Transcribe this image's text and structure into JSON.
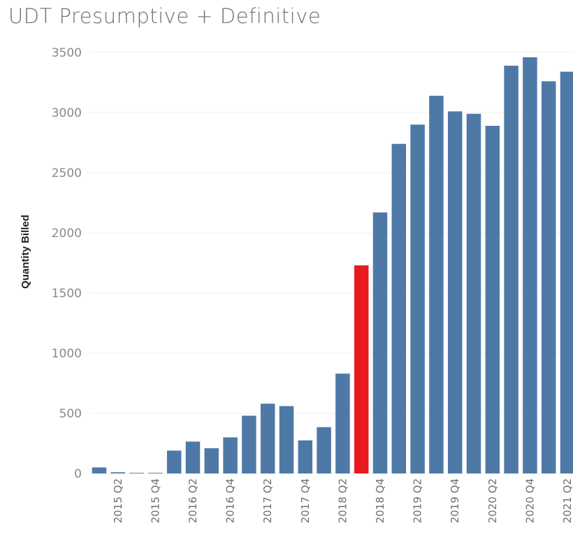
{
  "chart_data": {
    "type": "bar",
    "title": "UDT Presumptive + Definitive",
    "xlabel": "",
    "ylabel": "Quantity Billed",
    "ylim": [
      0,
      3500
    ],
    "yticks": [
      0,
      500,
      1000,
      1500,
      2000,
      2500,
      3000,
      3500
    ],
    "grid": true,
    "categories": [
      "2015 Q1",
      "2015 Q2",
      "2015 Q3",
      "2015 Q4",
      "2016 Q1",
      "2016 Q2",
      "2016 Q3",
      "2016 Q4",
      "2017 Q1",
      "2017 Q2",
      "2017 Q3",
      "2017 Q4",
      "2018 Q1",
      "2018 Q2",
      "2018 Q3",
      "2018 Q4",
      "2019 Q1",
      "2019 Q2",
      "2019 Q3",
      "2019 Q4",
      "2020 Q1",
      "2020 Q2",
      "2020 Q3",
      "2020 Q4",
      "2021 Q1",
      "2021 Q2"
    ],
    "tick_labels": [
      "",
      "2015 Q2",
      "",
      "2015 Q4",
      "",
      "2016 Q2",
      "",
      "2016 Q4",
      "",
      "2017 Q2",
      "",
      "2017 Q4",
      "",
      "2018 Q2",
      "",
      "2018 Q4",
      "",
      "2019 Q2",
      "",
      "2019 Q4",
      "",
      "2020 Q2",
      "",
      "2020 Q4",
      "",
      "2021 Q2"
    ],
    "values": [
      50,
      10,
      5,
      5,
      190,
      265,
      210,
      300,
      480,
      580,
      560,
      275,
      385,
      830,
      1730,
      2170,
      2740,
      2900,
      3140,
      3010,
      2990,
      2890,
      3390,
      3460,
      3260,
      3340
    ],
    "highlight_index": 14,
    "colors": {
      "bar": "#4e79a7",
      "highlight": "#e8191f",
      "grid": "#efefef"
    }
  }
}
